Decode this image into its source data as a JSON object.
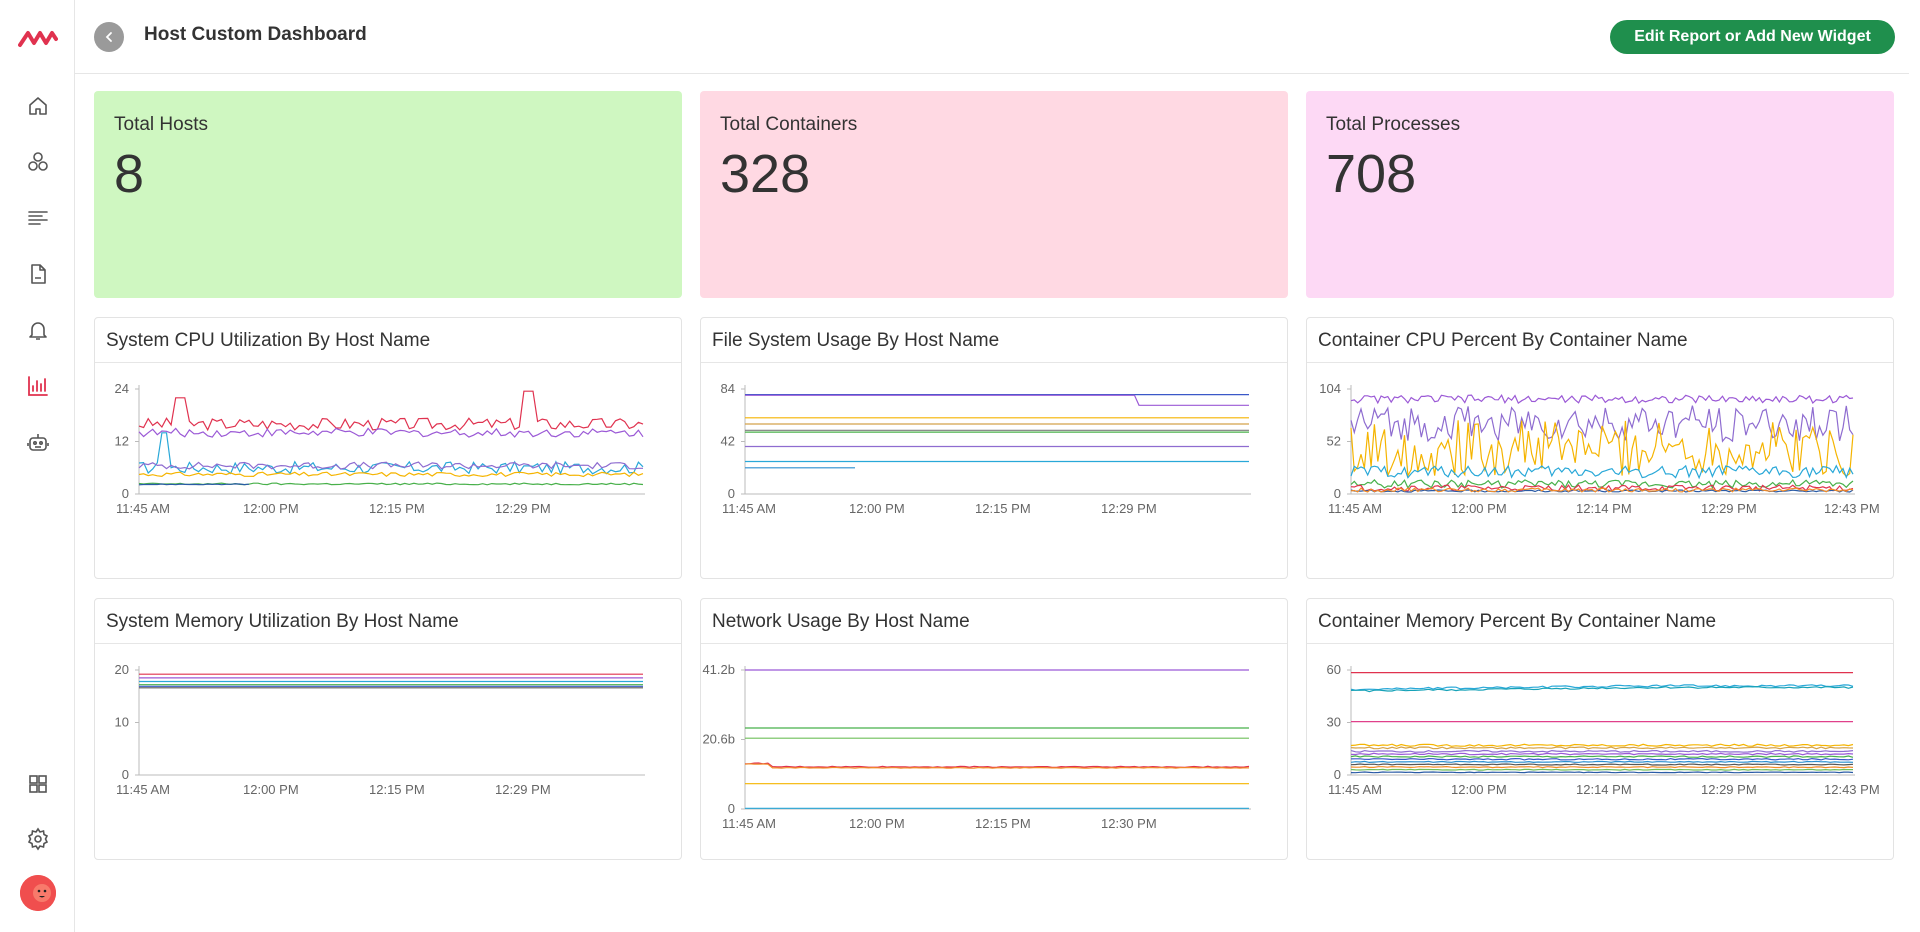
{
  "app": {
    "title": "Host Custom Dashboard",
    "edit_button_label": "Edit Report or Add New Widget"
  },
  "sidebar": {
    "items": [
      {
        "icon": "home-icon"
      },
      {
        "icon": "services-icon"
      },
      {
        "icon": "logs-icon"
      },
      {
        "icon": "document-icon"
      },
      {
        "icon": "bell-icon"
      },
      {
        "icon": "bar-chart-icon",
        "active": true
      },
      {
        "icon": "robot-icon"
      },
      {
        "icon": "grid-icon"
      },
      {
        "icon": "gear-icon"
      }
    ],
    "accent": "#e0324f"
  },
  "stats": [
    {
      "label": "Total Hosts",
      "value": "8",
      "color": "#cff7c1"
    },
    {
      "label": "Total Containers",
      "value": "328",
      "color": "#ffd9e3"
    },
    {
      "label": "Total Processes",
      "value": "708",
      "color": "#fdd9f5"
    }
  ],
  "charts": [
    {
      "title": "System CPU Utilization By Host Name"
    },
    {
      "title": "File System Usage By Host Name"
    },
    {
      "title": "Container CPU Percent By Container Name"
    },
    {
      "title": "System Memory Utilization By Host Name"
    },
    {
      "title": "Network Usage By Host Name"
    },
    {
      "title": "Container Memory Percent By Container Name"
    }
  ],
  "chart_data": [
    {
      "type": "line",
      "yticks": [
        "24",
        "12",
        "0"
      ],
      "xticks": [
        "11:45 AM",
        "12:00 PM",
        "12:15 PM",
        "12:29 PM"
      ],
      "ylim": [
        0,
        24
      ],
      "series": [
        {
          "color": "#e0324f",
          "level": 16,
          "noise": 1.4,
          "spikes": [
            {
              "at": 0.08,
              "h": 22
            },
            {
              "at": 0.77,
              "h": 23.5
            }
          ]
        },
        {
          "color": "#9b59d6",
          "level": 14,
          "noise": 1.0
        },
        {
          "color": "#29a8d8",
          "level": 6,
          "noise": 1.4,
          "spikes": [
            {
              "at": 0.05,
              "h": 14
            }
          ]
        },
        {
          "color": "#8e6cd0",
          "level": 6.5,
          "noise": 0.8
        },
        {
          "color": "#f5b400",
          "level": 4.5,
          "noise": 0.5
        },
        {
          "color": "#48b04a",
          "level": 2.3,
          "noise": 0.2
        },
        {
          "color": "#2a5ba6",
          "level": 2.2,
          "noise": 0.1,
          "end": 0.22
        }
      ]
    },
    {
      "type": "line",
      "yticks": [
        "84",
        "42",
        "0"
      ],
      "xticks": [
        "11:45 AM",
        "12:00 PM",
        "12:15 PM",
        "12:29 PM"
      ],
      "ylim": [
        0,
        84
      ],
      "series": [
        {
          "color": "#3a58c8",
          "level": 79.5,
          "noise": 0
        },
        {
          "color": "#9b59d6",
          "level": 79,
          "noise": 0,
          "step": {
            "at": 0.78,
            "to": 71
          }
        },
        {
          "color": "#f5b400",
          "level": 61,
          "noise": 0
        },
        {
          "color": "#d4a24a",
          "level": 56,
          "noise": 0
        },
        {
          "color": "#7b7b7b",
          "level": 51,
          "noise": 0
        },
        {
          "color": "#48b04a",
          "level": 49.5,
          "noise": 0
        },
        {
          "color": "#8e6cd0",
          "level": 38,
          "noise": 0
        },
        {
          "color": "#29a8d8",
          "level": 26,
          "noise": 0
        },
        {
          "color": "#2a8fd0",
          "level": 21,
          "noise": 0,
          "end": 0.22
        }
      ]
    },
    {
      "type": "line",
      "yticks": [
        "104",
        "52",
        "0"
      ],
      "xticks": [
        "11:45 AM",
        "12:00 PM",
        "12:14 PM",
        "12:29 PM",
        "12:43 PM"
      ],
      "ylim": [
        0,
        104
      ],
      "series": [
        {
          "color": "#9b59d6",
          "level": 94,
          "noise": 4
        },
        {
          "color": "#8e6cd0",
          "level": 70,
          "noise": 18
        },
        {
          "color": "#f5b400",
          "level": 45,
          "noise": 28
        },
        {
          "color": "#29a8d8",
          "level": 22,
          "noise": 6
        },
        {
          "color": "#48b04a",
          "level": 10,
          "noise": 4
        },
        {
          "color": "#e0324f",
          "level": 6,
          "noise": 3
        },
        {
          "color": "#2a5ba6",
          "level": 3,
          "noise": 1
        },
        {
          "color": "#f28c28",
          "level": 4,
          "noise": 2
        }
      ]
    },
    {
      "type": "line",
      "yticks": [
        "20",
        "10",
        "0"
      ],
      "xticks": [
        "11:45 AM",
        "12:00 PM",
        "12:15 PM",
        "12:29 PM"
      ],
      "ylim": [
        0,
        20
      ],
      "series": [
        {
          "color": "#e0324f",
          "level": 19.2,
          "noise": 0
        },
        {
          "color": "#9b59d6",
          "level": 18.5,
          "noise": 0
        },
        {
          "color": "#29a8d8",
          "level": 17.8,
          "noise": 0
        },
        {
          "color": "#48b04a",
          "level": 17.2,
          "noise": 0
        },
        {
          "color": "#3a58c8",
          "level": 16.9,
          "noise": 0
        },
        {
          "color": "#555555",
          "level": 16.6,
          "noise": 0
        }
      ]
    },
    {
      "type": "line",
      "yticks": [
        "41.2b",
        "20.6b",
        "0"
      ],
      "xticks": [
        "11:45 AM",
        "12:00 PM",
        "12:15 PM",
        "12:30 PM"
      ],
      "ylim": [
        0,
        41.2
      ],
      "series": [
        {
          "color": "#9b59d6",
          "level": 41.2,
          "noise": 0
        },
        {
          "color": "#48b04a",
          "level": 24,
          "noise": 0
        },
        {
          "color": "#6fbf5a",
          "level": 21,
          "noise": 0
        },
        {
          "color": "#e0324f",
          "level": 12.5,
          "noise": 0.15,
          "start": 13.5
        },
        {
          "color": "#f28c28",
          "level": 12.2,
          "noise": 0.1,
          "start": 13.3
        },
        {
          "color": "#f5b400",
          "level": 7.5,
          "noise": 0
        },
        {
          "color": "#29a8d8",
          "level": 0.2,
          "noise": 0
        }
      ]
    },
    {
      "type": "line",
      "yticks": [
        "60",
        "30",
        "0"
      ],
      "xticks": [
        "11:45 AM",
        "12:00 PM",
        "12:14 PM",
        "12:29 PM",
        "12:43 PM"
      ],
      "ylim": [
        0,
        60
      ],
      "series": [
        {
          "color": "#e0324f",
          "level": 58.5,
          "noise": 0
        },
        {
          "color": "#29a8d8",
          "level": 51,
          "noise": 0.6,
          "rise": true
        },
        {
          "color": "#17a2b8",
          "level": 50,
          "noise": 0.5,
          "rise": true
        },
        {
          "color": "#e0408a",
          "level": 30.5,
          "noise": 0
        },
        {
          "color": "#f5b400",
          "level": 17,
          "noise": 0.6
        },
        {
          "color": "#d4a24a",
          "level": 15.5,
          "noise": 0.5
        },
        {
          "color": "#8e6cd0",
          "level": 13.5,
          "noise": 0.5
        },
        {
          "color": "#9b59d6",
          "level": 12,
          "noise": 0.4
        },
        {
          "color": "#48b04a",
          "level": 10.5,
          "noise": 0.4
        },
        {
          "color": "#3a58c8",
          "level": 9,
          "noise": 0.4
        },
        {
          "color": "#2a8fd0",
          "level": 7.5,
          "noise": 0.3
        },
        {
          "color": "#555555",
          "level": 6,
          "noise": 0.3
        },
        {
          "color": "#f28c28",
          "level": 4.5,
          "noise": 0.3
        },
        {
          "color": "#6fbf5a",
          "level": 3,
          "noise": 0.2
        },
        {
          "color": "#2a5ba6",
          "level": 1.5,
          "noise": 0.2
        }
      ]
    }
  ]
}
